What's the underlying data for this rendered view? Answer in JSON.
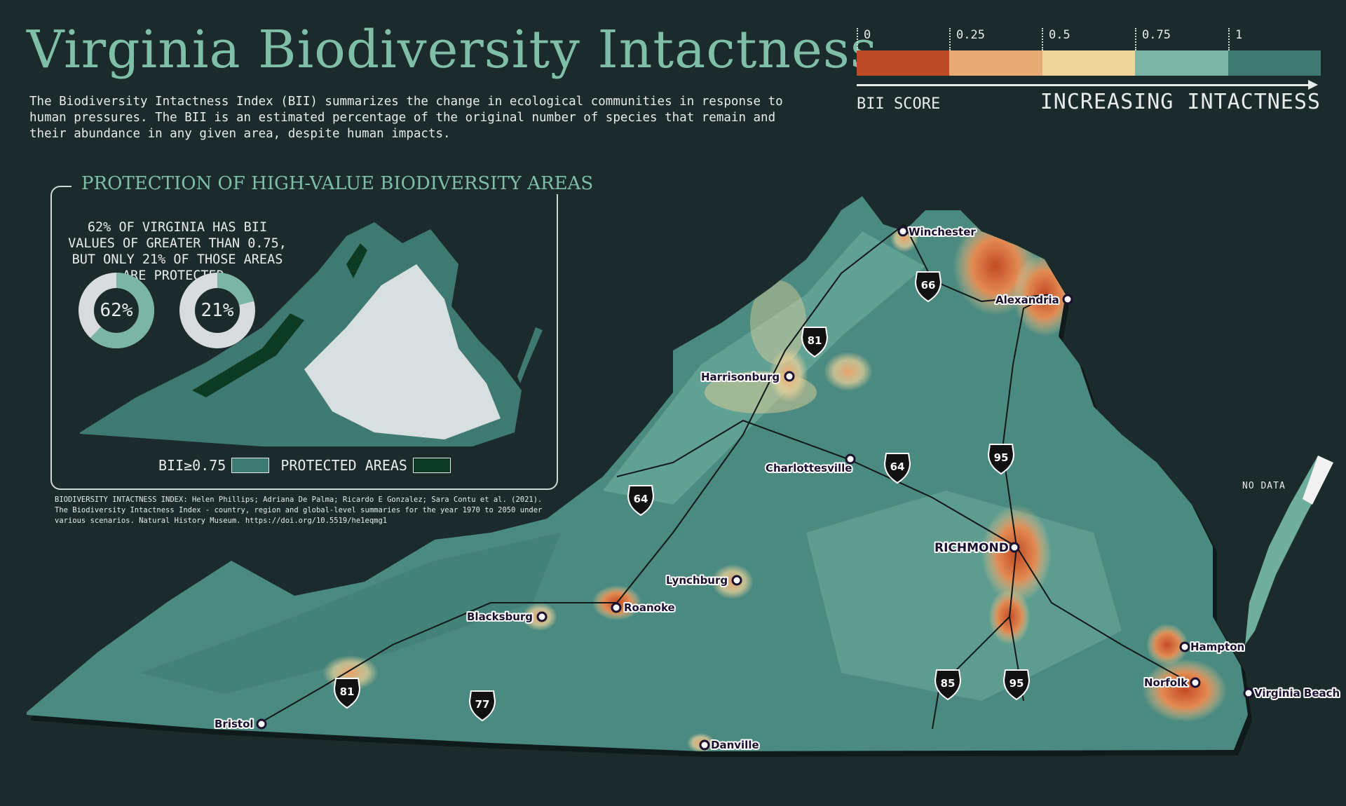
{
  "title": "Virginia Biodiversity Intactness",
  "intro": "The Biodiversity Intactness Index (BII) summarizes the change in ecological communities in response to human pressures. The BII is an estimated percentage of the original number of species that remain and their abundance in any given area, despite human impacts.",
  "legend": {
    "ticks": [
      "0",
      "0.25",
      "0.5",
      "0.75",
      "1"
    ],
    "colors": [
      "#bd4a27",
      "#e9ab76",
      "#f0d59c",
      "#7ab5a5",
      "#3e7a72"
    ],
    "score_label": "BII SCORE",
    "direction_label": "INCREASING INTACTNESS"
  },
  "inset": {
    "title": "PROTECTION OF HIGH-VALUE BIODIVERSITY AREAS",
    "statement": "62% OF VIRGINIA HAS BII VALUES OF GREATER THAN 0.75, BUT ONLY 21% OF THOSE AREAS ARE PROTECTED.",
    "donuts": [
      {
        "label": "62%",
        "value": 0.62,
        "color": "#7ab5a5"
      },
      {
        "label": "21%",
        "value": 0.21,
        "color": "#7ab5a5"
      }
    ],
    "key_bii": "BII≥0.75",
    "key_bii_color": "#3e7a72",
    "key_protected": "PROTECTED AREAS",
    "key_protected_color": "#0d3a22"
  },
  "citation": "BIODIVERSITY INTACTNESS INDEX: Helen Phillips; Adriana De Palma; Ricardo E Gonzalez; Sara Contu et al. (2021). The Biodiversity Intactness Index - country, region and global-level summaries for the year 1970 to 2050 under various scenarios. Natural History Museum. https://doi.org/10.5519/he1eqmg1",
  "map": {
    "no_data": "NO DATA",
    "cities": [
      "Winchester",
      "Alexandria",
      "Harrisonburg",
      "Charlottesville",
      "RICHMOND",
      "Lynchburg",
      "Blacksburg",
      "Roanoke",
      "Hampton",
      "Norfolk",
      "Virginia Beach",
      "Bristol",
      "Danville"
    ],
    "highways": [
      "66",
      "81",
      "64",
      "95",
      "64",
      "85",
      "95",
      "81",
      "77"
    ]
  }
}
